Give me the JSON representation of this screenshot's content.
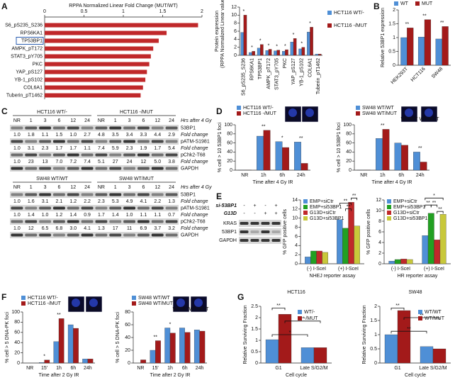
{
  "panel_labels": [
    "A",
    "B",
    "C",
    "D",
    "E",
    "F",
    "G"
  ],
  "chart_data": [
    {
      "type": "barh",
      "title": "RPPA Normalized Linear Fold Change (MUT/WT)",
      "categories": [
        "S6_pS235_S236",
        "RPS6KA1",
        "TP53BP1",
        "AMPK_pT172",
        "STAT3_pY705",
        "PKC",
        "YAP_pS127",
        "YB-1_pS102",
        "COL6A1",
        "Tuberin_pT1462"
      ],
      "values": [
        1.95,
        1.55,
        1.45,
        1.38,
        1.35,
        1.33,
        1.3,
        1.28,
        1.25,
        1.22
      ],
      "color": "#c0282a",
      "xlim": [
        0,
        2
      ],
      "xticks": [
        0,
        0.5,
        1,
        1.5,
        2
      ],
      "highlight_index": 2
    },
    {
      "type": "bar",
      "ylabel": "Protein expression",
      "ylabel_sub": "(RPPA Normalized Linear values)",
      "categories": [
        "S6_pS235_S236",
        "RPS6KA1",
        "TP53BP1",
        "AMPK_pT172",
        "STAT3_pY705",
        "PKC",
        "YAP_pS127",
        "YB-1_pS102",
        "COL6A1",
        "Tuberin_pT1462"
      ],
      "series": [
        {
          "name": "HCT116 WT/-",
          "color": "#4f8fd6",
          "values": [
            5.7,
            0.7,
            1.8,
            1.2,
            1.1,
            1.0,
            3.3,
            1.6,
            5.8,
            0.3
          ]
        },
        {
          "name": "HCT116 -/MUT",
          "color": "#a31a1a",
          "values": [
            10,
            1.0,
            2.7,
            1.5,
            1.3,
            1.4,
            4.2,
            2.0,
            7.0,
            0.3
          ]
        }
      ],
      "significance": [
        "*",
        "*",
        "*",
        "*",
        "*",
        "*",
        "*",
        "*",
        "*",
        null
      ],
      "ylim": [
        0,
        12
      ],
      "yticks": [
        0,
        2,
        4,
        6,
        8,
        10,
        12
      ]
    },
    {
      "type": "bar",
      "ylabel": "Relative 53BP1 expression",
      "categories": [
        "HEK293T",
        "HCT116",
        "SW48"
      ],
      "series": [
        {
          "name": "WT",
          "color": "#4f8fd6",
          "values": [
            1.0,
            1.02,
            0.95
          ]
        },
        {
          "name": "MUT",
          "color": "#a31a1a",
          "values": [
            1.35,
            1.65,
            1.4
          ]
        }
      ],
      "significance": [
        "**",
        "**",
        "**"
      ],
      "ylim": [
        0,
        2
      ],
      "yticks": [
        0,
        0.5,
        1,
        1.5,
        2
      ]
    },
    {
      "type": "bar",
      "ylabel": "% cell > 10 53BP1 foci",
      "xlabel": "Time after 4 Gy IR",
      "categories": [
        "NR",
        "1h",
        "6h",
        "24h"
      ],
      "series": [
        {
          "name": "HCT116 WT/-",
          "color": "#4f8fd6",
          "values": [
            0.5,
            75,
            63,
            62
          ]
        },
        {
          "name": "HCT116 -/MUT",
          "color": "#a31a1a",
          "values": [
            0.5,
            88,
            50,
            15
          ]
        }
      ],
      "significance": [
        null,
        "**",
        "*",
        "**"
      ],
      "inset_labels": [
        "WT/-",
        "-/MUT"
      ],
      "ylim": [
        0,
        100
      ],
      "yticks": [
        0,
        20,
        40,
        60,
        80,
        100
      ]
    },
    {
      "type": "bar",
      "ylabel": "% cell > 10 53BP1 foci",
      "xlabel": "Time after 4 Gy IR",
      "categories": [
        "NR",
        "1h",
        "6h",
        "24h"
      ],
      "series": [
        {
          "name": "SW48 WT/WT",
          "color": "#4f8fd6",
          "values": [
            0.5,
            70,
            60,
            40
          ]
        },
        {
          "name": "SW48 WT/MUT",
          "color": "#a31a1a",
          "values": [
            0.5,
            90,
            55,
            18
          ]
        }
      ],
      "significance": [
        null,
        "**",
        null,
        "**"
      ],
      "inset_labels": [
        "WT/WT",
        "WT/MUT"
      ],
      "ylim": [
        0,
        100
      ],
      "yticks": [
        0,
        20,
        40,
        60,
        80,
        100
      ]
    },
    {
      "type": "bar",
      "ylabel": "% GFP positive cells",
      "xlabel": "NHEJ reporter assay",
      "categories": [
        "(-) I-SceI",
        "(+) I-SceI"
      ],
      "series": [
        {
          "name": "EMP+siCtr",
          "color": "#4f8fd6",
          "values": [
            1.5,
            9.7
          ]
        },
        {
          "name": "EMP+si53BP1",
          "color": "#22a022",
          "values": [
            2.8,
            7.8
          ]
        },
        {
          "name": "G13D+siCtr",
          "color": "#c0282a",
          "values": [
            2.8,
            13.5
          ]
        },
        {
          "name": "G13D+si53BP1",
          "color": "#c8c83a",
          "values": [
            2.5,
            8.3
          ]
        }
      ],
      "brackets": [
        "**",
        "**",
        "**"
      ],
      "ylim": [
        0,
        14
      ],
      "yticks": [
        0,
        2,
        4,
        6,
        8,
        10,
        12,
        14
      ]
    },
    {
      "type": "bar",
      "ylabel": "% GFP positive cells",
      "xlabel": "HR reporter assay",
      "categories": [
        "(-) I-SceI",
        "(+) I-SceI"
      ],
      "series": [
        {
          "name": "EMP+siCtr",
          "color": "#4f8fd6",
          "values": [
            0.5,
            5.3
          ]
        },
        {
          "name": "EMP+si53BP1",
          "color": "#22a022",
          "values": [
            0.8,
            9.5
          ]
        },
        {
          "name": "G13D+siCtr",
          "color": "#c0282a",
          "values": [
            0.9,
            4.5
          ]
        },
        {
          "name": "G13D+si53BP1",
          "color": "#c8c83a",
          "values": [
            0.8,
            9.3
          ]
        }
      ],
      "brackets": [
        "*",
        "**",
        "**",
        "**"
      ],
      "ylim": [
        0,
        12
      ],
      "yticks": [
        0,
        2,
        4,
        6,
        8,
        10,
        12
      ]
    },
    {
      "type": "bar",
      "ylabel": "% cell > 5 DNA-PK foci",
      "xlabel": "Time after 2 Gy IR",
      "categories": [
        "NR",
        "15'",
        "1h",
        "6h",
        "24h"
      ],
      "series": [
        {
          "name": "HCT116 WT/-",
          "color": "#4f8fd6",
          "values": [
            0,
            1,
            42,
            75,
            8
          ]
        },
        {
          "name": "HCT116 -/MUT",
          "color": "#a31a1a",
          "values": [
            0,
            6,
            87,
            68,
            8
          ]
        }
      ],
      "significance": [
        null,
        "*",
        "**",
        null,
        null
      ],
      "inset_labels": [
        "WT/-",
        "-/MUT"
      ],
      "ylim": [
        0,
        100
      ],
      "yticks": [
        0,
        20,
        40,
        60,
        80,
        100
      ]
    },
    {
      "type": "bar",
      "ylabel": "% cell > 5 DNA-PK foci",
      "xlabel": "Time after 2 Gy IR",
      "categories": [
        "NR",
        "15'",
        "1h",
        "6h",
        "24h"
      ],
      "series": [
        {
          "name": "SW48 WT/WT",
          "color": "#4f8fd6",
          "values": [
            0,
            20,
            55,
            55,
            52
          ]
        },
        {
          "name": "SW48 WT/MUT",
          "color": "#a31a1a",
          "values": [
            5,
            35,
            47,
            48,
            50
          ]
        }
      ],
      "significance": [
        null,
        "**",
        "*",
        null,
        null
      ],
      "inset_labels": [
        "WT/WT",
        "WT/MUT"
      ],
      "ylim": [
        0,
        80
      ],
      "yticks": [
        0,
        20,
        40,
        60,
        80
      ]
    },
    {
      "type": "bar",
      "title": "HCT116",
      "ylabel": "Relative Surviving Fraction",
      "xlabel": "Cell cycle",
      "categories": [
        "G1",
        "Late S/G2/M"
      ],
      "series": [
        {
          "name": "WT/-",
          "color": "#4f8fd6",
          "values": [
            1.03,
            0.68
          ]
        },
        {
          "name": "-/MUT",
          "color": "#a31a1a",
          "values": [
            2.15,
            0.68
          ]
        }
      ],
      "brackets": [
        "**",
        "**",
        "*"
      ],
      "ylim": [
        0,
        2.5
      ],
      "yticks": [
        0,
        0.5,
        1,
        1.5,
        2,
        2.5
      ]
    },
    {
      "type": "bar",
      "title": "SW48",
      "ylabel": "Relative Surviving Fraction",
      "xlabel": "Cell cycle",
      "categories": [
        "G1",
        "Late S/G2/M"
      ],
      "series": [
        {
          "name": "WT/WT",
          "color": "#4f8fd6",
          "values": [
            1.0,
            0.58
          ]
        },
        {
          "name": "WT/MUT",
          "color": "#a31a1a",
          "values": [
            1.85,
            0.5
          ]
        }
      ],
      "brackets": [
        "**",
        "**",
        "**"
      ],
      "ylim": [
        0,
        2
      ],
      "yticks": [
        0,
        0.5,
        1,
        1.5,
        2
      ]
    }
  ],
  "blots": {
    "c_hct116": {
      "groups": [
        "HCT116 WT/-",
        "HCT116 -/MUT"
      ],
      "time_label": "Hrs after 4 Gy",
      "lanes": [
        "NR",
        "1",
        "3",
        "6",
        "12",
        "24",
        "NR",
        "1",
        "3",
        "6",
        "12",
        "24"
      ],
      "rows": [
        {
          "protein": "53BP1",
          "fold_label": "Fold change",
          "fold": [
            "1.0",
            "1.8",
            "1.1",
            "1.5",
            "1.0",
            "2.7",
            "4.8",
            "3.5",
            "3.4",
            "3.3",
            "4.4",
            "2.9"
          ]
        },
        {
          "protein": "pATM-S1981",
          "fold_label": "Fold change",
          "fold": [
            "1.0",
            "3.1",
            "2.3",
            "1.7",
            "1.7",
            "1.1",
            "7.4",
            "5.9",
            "2.3",
            "1.9",
            "1.7",
            "5.4"
          ]
        },
        {
          "protein": "pChk2-T68",
          "fold_label": "Fold change",
          "fold": [
            "1.0",
            "23",
            "13",
            "7.0",
            "7.2",
            "7.4",
            "5.1",
            "27",
            "24",
            "12",
            "5.0",
            "3.8"
          ]
        },
        {
          "protein": "GAPDH"
        }
      ]
    },
    "c_sw48": {
      "groups": [
        "SW48 WT/WT",
        "SW48 WT/MUT"
      ],
      "time_label": "Hrs after 4 Gy",
      "lanes": [
        "NR",
        "1",
        "3",
        "6",
        "12",
        "24",
        "NR",
        "1",
        "3",
        "6",
        "12",
        "24"
      ],
      "rows": [
        {
          "protein": "53BP1",
          "fold_label": "Fold change",
          "fold": [
            "1.0",
            "1.6",
            "3.1",
            "2.1",
            "1.2",
            "2.2",
            "2.3",
            "5.3",
            "4.9",
            "4.1",
            "2.2",
            "1.3"
          ]
        },
        {
          "protein": "pATM-S1981",
          "fold_label": "Fold change",
          "fold": [
            "1.0",
            "1.4",
            "1.0",
            "1.2",
            "1.4",
            "0.9",
            "1.7",
            "1.4",
            "1.0",
            "1.1",
            "1.1",
            "0.7"
          ]
        },
        {
          "protein": "pChk2-T68",
          "fold_label": "Fold change",
          "fold": [
            "1.0",
            "12",
            "6.5",
            "6.8",
            "3.0",
            "4.1",
            "1.3",
            "17",
            "11",
            "6.9",
            "3.7",
            "3.2"
          ]
        },
        {
          "protein": "GAPDH"
        }
      ]
    },
    "e": {
      "treatments": [
        {
          "label": "si-53BP1",
          "signs": [
            "-",
            "+",
            "-",
            "+"
          ]
        },
        {
          "label": "G13D",
          "signs": [
            "-",
            "-",
            "+",
            "+"
          ]
        }
      ],
      "bands": [
        "KRAS",
        "53BP1",
        "GAPDH"
      ]
    }
  }
}
